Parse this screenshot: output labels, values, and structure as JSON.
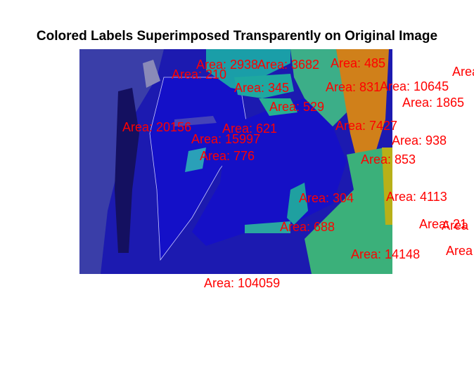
{
  "title": "Colored Labels Superimposed Transparently on Original Image",
  "colors": {
    "label_text": "#ff0000",
    "background_region": "#1a1ab4",
    "lung_region": "#1c10c4",
    "teal_region": "#1aa3a0",
    "green_region": "#40b37a",
    "orange_region": "#d07a1a",
    "yellow_region": "#b8b018"
  },
  "area_labels": [
    "Area: 2938",
    "Area: 3682",
    "Area: 485",
    "Area: 210",
    "Area: 345",
    "Area: 831",
    "Area: 10645",
    "Area: 1865",
    "Area: 529",
    "Area: 20156",
    "Area: 621",
    "Area: 7427",
    "Area: 15997",
    "Area: 938",
    "Area: 776",
    "Area: 853",
    "Area: 304",
    "Area: 4113",
    "Area: 688",
    "Area: 21",
    "Area",
    "Area: 14148",
    "Area",
    "Area",
    "Area: 104059"
  ]
}
